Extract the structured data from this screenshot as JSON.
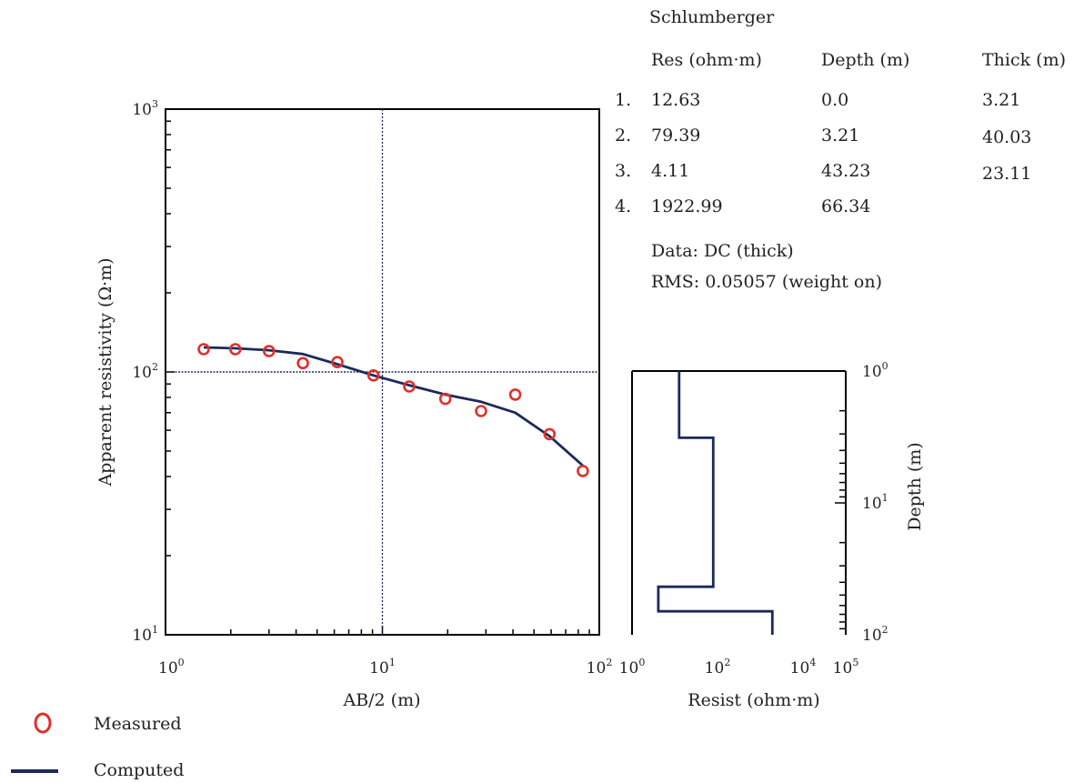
{
  "panel": {
    "method": "Schlumberger",
    "columns": [
      "Res (ohm·m)",
      "Depth (m)",
      "Thick (m)"
    ],
    "layers": [
      {
        "index": "1.",
        "res": "12.63",
        "depth": "0.0",
        "thick": "3.21"
      },
      {
        "index": "2.",
        "res": "79.39",
        "depth": "3.21",
        "thick": "40.03"
      },
      {
        "index": "3.",
        "res": "4.11",
        "depth": "43.23",
        "thick": "23.11"
      },
      {
        "index": "4.",
        "res": "1922.99",
        "depth": "66.34",
        "thick": ""
      }
    ],
    "data_line": "Data: DC (thick)",
    "rms_line": "RMS: 0.05057 (weight on)"
  },
  "legend": {
    "measured_label": "Measured",
    "computed_label": "Computed"
  },
  "colors": {
    "measured": "#e0302a",
    "computed": "#1b2a5c",
    "axis": "#000000",
    "crosshair": "#1b2a5c"
  },
  "chart_data": [
    {
      "type": "scatter",
      "title": "",
      "xlabel": "AB/2 (m)",
      "ylabel": "Apparent resistivity (Ω·m)",
      "xscale": "log",
      "yscale": "log",
      "xlim": [
        1,
        100
      ],
      "ylim": [
        10,
        1000
      ],
      "x_ticks": [
        {
          "base": "10",
          "exp": "0",
          "value": 1
        },
        {
          "base": "10",
          "exp": "1",
          "value": 10
        },
        {
          "base": "10",
          "exp": "2",
          "value": 100
        }
      ],
      "y_ticks": [
        {
          "base": "10",
          "exp": "1",
          "value": 10
        },
        {
          "base": "10",
          "exp": "2",
          "value": 100
        },
        {
          "base": "10",
          "exp": "3",
          "value": 1000
        }
      ],
      "reference_lines": {
        "x": 10,
        "y": 100
      },
      "grid": false,
      "legend_position": "bottom-left",
      "series": [
        {
          "name": "Measured",
          "style": "open-circle",
          "x": [
            1.5,
            2.1,
            3.0,
            4.3,
            6.2,
            9.1,
            13.3,
            19.5,
            28.5,
            41.0,
            59.0,
            84.0
          ],
          "y": [
            122,
            122,
            120,
            108,
            109,
            97,
            88,
            79,
            71,
            82,
            58,
            42
          ]
        },
        {
          "name": "Computed",
          "style": "line",
          "x": [
            1.5,
            2.1,
            3.0,
            4.3,
            6.2,
            9.1,
            13.3,
            19.5,
            28.5,
            41.0,
            59.0,
            84.0
          ],
          "y": [
            124,
            123,
            121,
            117,
            107,
            97,
            89,
            82,
            77,
            70,
            57,
            44
          ]
        }
      ]
    },
    {
      "type": "line",
      "title": "",
      "xlabel": "Resist (ohm·m)",
      "ylabel": "Depth (m)",
      "xscale": "log",
      "yscale": "log",
      "xlim": [
        1,
        100000
      ],
      "ylim": [
        1,
        100
      ],
      "y_inverted": true,
      "x_ticks": [
        {
          "base": "10",
          "exp": "0",
          "value": 1
        },
        {
          "base": "10",
          "exp": "2",
          "value": 100
        },
        {
          "base": "10",
          "exp": "4",
          "value": 10000
        },
        {
          "base": "10",
          "exp": "5",
          "value": 100000
        }
      ],
      "y_ticks": [
        {
          "base": "10",
          "exp": "0",
          "value": 1
        },
        {
          "base": "10",
          "exp": "1",
          "value": 10
        },
        {
          "base": "10",
          "exp": "2",
          "value": 100
        }
      ],
      "series": [
        {
          "name": "",
          "layers": [
            {
              "res": 12.63,
              "top": 1,
              "bottom": 3.21
            },
            {
              "res": 79.39,
              "top": 3.21,
              "bottom": 43.23
            },
            {
              "res": 4.11,
              "top": 43.23,
              "bottom": 66.34
            },
            {
              "res": 1922.99,
              "top": 66.34,
              "bottom": 100
            }
          ]
        }
      ]
    }
  ]
}
